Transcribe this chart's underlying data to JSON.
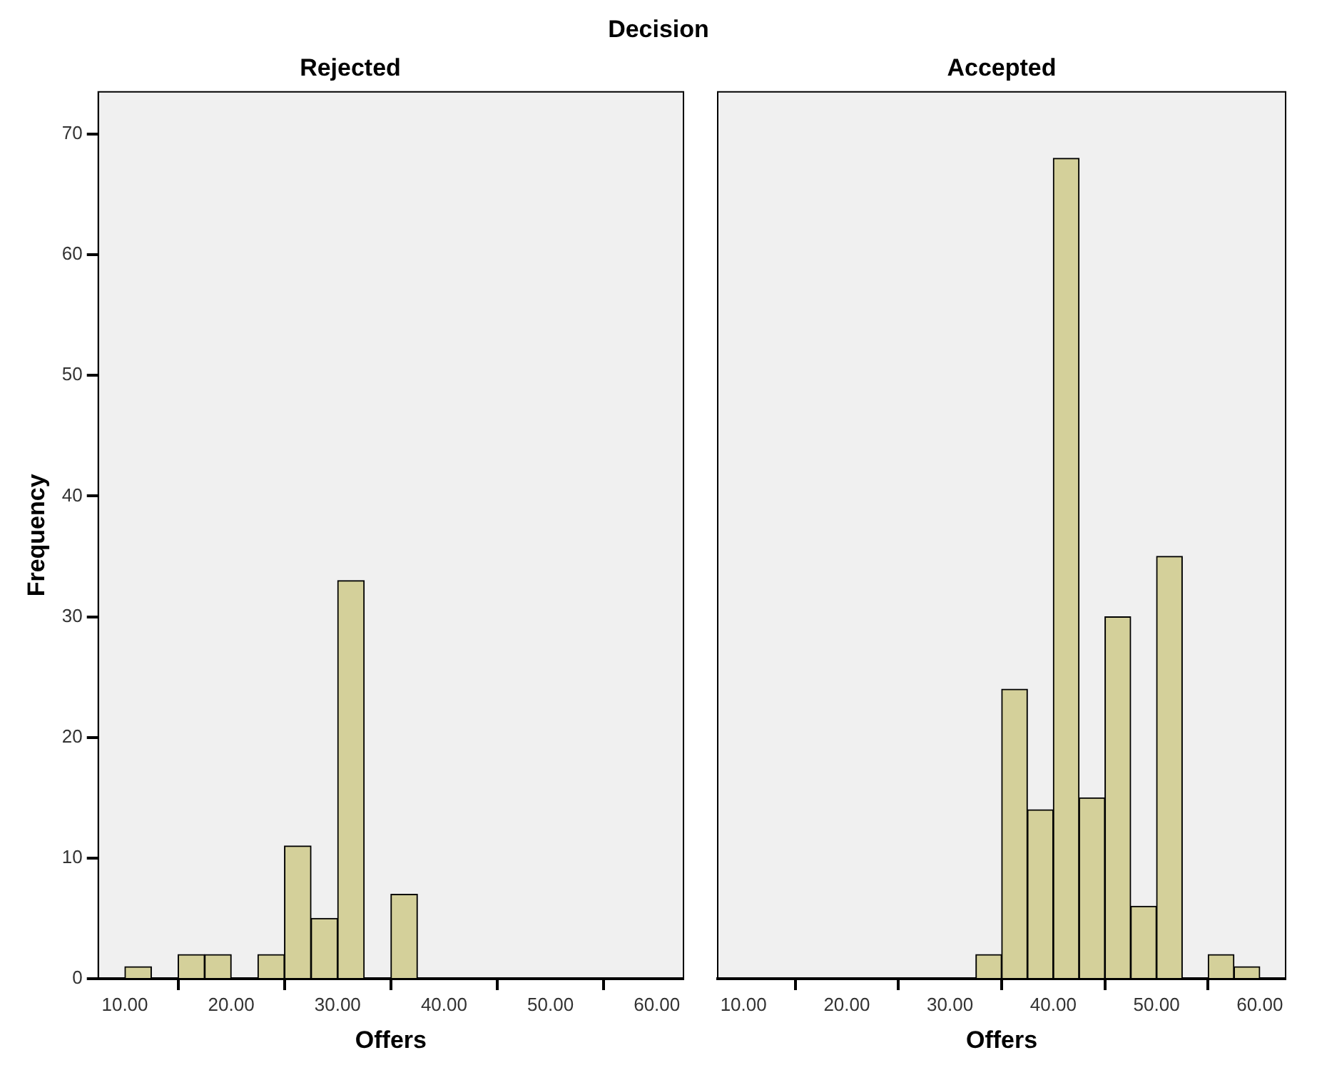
{
  "chart_data": [
    {
      "type": "histogram",
      "title": "Rejected",
      "xlabel": "Offers",
      "ylabel": "Frequency",
      "annotations": [
        "Decision"
      ],
      "bins": [
        10,
        12.5,
        15,
        17.5,
        20,
        22.5,
        25,
        27.5,
        30,
        32.5,
        35,
        37.5,
        40,
        42.5,
        45,
        47.5,
        50,
        52.5,
        55,
        57.5,
        60
      ],
      "values": [
        1,
        0,
        2,
        2,
        0,
        2,
        11,
        5,
        33,
        0,
        7,
        0,
        0,
        0,
        0,
        0,
        0,
        0,
        0,
        0
      ],
      "color": "#d4d09a",
      "xlim": [
        7.5,
        62.5
      ],
      "ylim": [
        0,
        73.5
      ],
      "xticks": [
        {
          "value": 10,
          "label": "10.00"
        },
        {
          "value": 20,
          "label": "20.00"
        },
        {
          "value": 30,
          "label": "30.00"
        },
        {
          "value": 40,
          "label": "40.00"
        },
        {
          "value": 50,
          "label": "50.00"
        },
        {
          "value": 60,
          "label": "60.00"
        }
      ],
      "yticks": [
        0,
        10,
        20,
        30,
        40,
        50,
        60,
        70
      ],
      "grid": false,
      "legend": false
    },
    {
      "type": "histogram",
      "title": "Accepted",
      "xlabel": "Offers",
      "bins": [
        10,
        12.5,
        15,
        17.5,
        20,
        22.5,
        25,
        27.5,
        30,
        32.5,
        35,
        37.5,
        40,
        42.5,
        45,
        47.5,
        50,
        52.5,
        55,
        57.5,
        60
      ],
      "values": [
        0,
        0,
        0,
        0,
        0,
        0,
        0,
        0,
        0,
        2,
        24,
        14,
        68,
        15,
        30,
        6,
        35,
        0,
        2,
        1
      ],
      "color": "#d4d09a",
      "xlim": [
        7.5,
        62.5
      ],
      "ylim": [
        0,
        73.5
      ],
      "xticks": [
        {
          "value": 10,
          "label": "10.00"
        },
        {
          "value": 20,
          "label": "20.00"
        },
        {
          "value": 30,
          "label": "30.00"
        },
        {
          "value": 40,
          "label": "40.00"
        },
        {
          "value": 50,
          "label": "50.00"
        },
        {
          "value": 60,
          "label": "60.00"
        }
      ],
      "tick_labels": "x",
      "grid": false,
      "legend": false
    }
  ]
}
